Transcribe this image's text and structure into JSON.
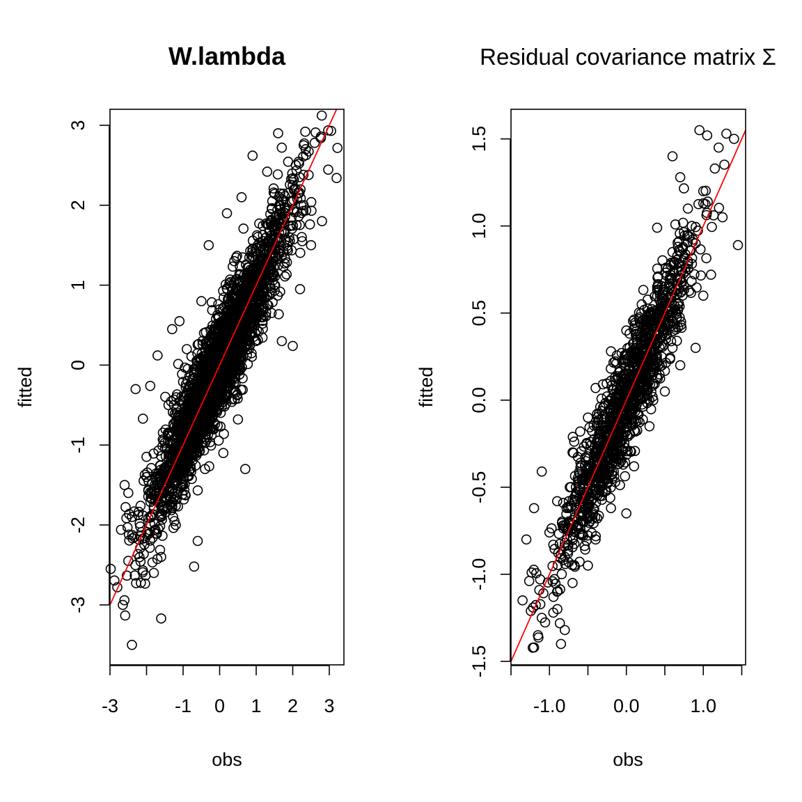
{
  "chart_data": [
    {
      "type": "scatter",
      "title": "W.lambda",
      "xlabel": "obs",
      "ylabel": "fitted",
      "xlim": [
        -3.0,
        3.4
      ],
      "ylim": [
        -3.75,
        3.2
      ],
      "xticks": [
        -3,
        -2,
        -1,
        0,
        1,
        2,
        3
      ],
      "xtick_labels": [
        "-3",
        "",
        "-1",
        "0",
        "1",
        "2",
        "3"
      ],
      "yticks": [
        -3,
        -2,
        -1,
        0,
        1,
        2,
        3
      ],
      "ytick_labels": [
        "-3",
        "-2",
        "-1",
        "0",
        "1",
        "2",
        "3"
      ],
      "reference_line": {
        "slope": 1.0,
        "intercept": 0.0,
        "color": "#ff0000"
      },
      "grid": false,
      "legend": "none",
      "points": [
        [
          -2.8,
          -2.78
        ],
        [
          -2.65,
          -3.0
        ],
        [
          -2.4,
          -3.5
        ],
        [
          -1.6,
          -3.17
        ],
        [
          -0.7,
          -2.52
        ],
        [
          -2.7,
          -2.06
        ],
        [
          -2.6,
          -1.5
        ],
        [
          -2.5,
          -1.6
        ],
        [
          -2.3,
          -0.3
        ],
        [
          -2.1,
          -0.67
        ],
        [
          -1.9,
          -0.26
        ],
        [
          -1.7,
          0.12
        ],
        [
          -1.3,
          0.45
        ],
        [
          -1.1,
          0.55
        ],
        [
          -0.3,
          1.5
        ],
        [
          0.2,
          1.9
        ],
        [
          0.6,
          2.1
        ],
        [
          0.9,
          2.62
        ],
        [
          1.3,
          2.42
        ],
        [
          1.6,
          2.9
        ],
        [
          1.7,
          2.72
        ],
        [
          2.0,
          2.25
        ],
        [
          2.3,
          2.75
        ],
        [
          2.6,
          2.78
        ],
        [
          3.2,
          2.34
        ],
        [
          2.8,
          1.8
        ],
        [
          2.5,
          1.5
        ],
        [
          2.2,
          0.95
        ],
        [
          2.0,
          0.24
        ],
        [
          1.7,
          0.3
        ],
        [
          0.7,
          -1.3
        ],
        [
          0.5,
          -0.68
        ],
        [
          0.1,
          -1.1
        ],
        [
          -0.6,
          -2.2
        ],
        [
          -1.2,
          -2.0
        ],
        [
          -1.6,
          -2.4
        ],
        [
          -1.8,
          -2.6
        ],
        [
          -2.0,
          -1.4
        ],
        [
          -2.4,
          -1.9
        ],
        [
          -2.5,
          -2.45
        ],
        [
          -0.2,
          -0.8
        ],
        [
          0.3,
          -0.3
        ],
        [
          0.8,
          0.2
        ],
        [
          1.2,
          0.6
        ],
        [
          1.4,
          1.8
        ],
        [
          1.0,
          1.2
        ],
        [
          0.4,
          1.3
        ],
        [
          -0.5,
          0.8
        ],
        [
          -0.9,
          0.2
        ],
        [
          -1.4,
          -0.5
        ],
        [
          -1.7,
          -1.5
        ],
        [
          -1.0,
          -1.5
        ],
        [
          -0.4,
          -1.3
        ],
        [
          0.0,
          0.0
        ],
        [
          0.6,
          0.5
        ],
        [
          1.1,
          0.9
        ],
        [
          1.5,
          1.0
        ],
        [
          1.9,
          1.6
        ],
        [
          2.3,
          2.0
        ],
        [
          -0.1,
          0.5
        ]
      ]
    },
    {
      "type": "scatter",
      "title": "Residual covariance matrix Σ",
      "xlabel": "obs",
      "ylabel": "fitted",
      "xlim": [
        -1.5,
        1.55
      ],
      "ylim": [
        -1.52,
        1.67
      ],
      "xticks": [
        -1.5,
        -1.0,
        -0.5,
        0.0,
        0.5,
        1.0,
        1.5
      ],
      "xtick_labels": [
        "",
        "-1.0",
        "",
        "0.0",
        "",
        "1.0",
        ""
      ],
      "yticks": [
        -1.5,
        -1.0,
        -0.5,
        0.0,
        0.5,
        1.0,
        1.5
      ],
      "ytick_labels": [
        "-1.5",
        "-1.0",
        "-0.5",
        "0.0",
        "0.5",
        "1.0",
        "1.5"
      ],
      "reference_line": {
        "slope": 1.0,
        "intercept": 0.0,
        "color": "#ff0000"
      },
      "grid": false,
      "legend": "none",
      "points": [
        [
          -1.35,
          -1.15
        ],
        [
          -1.2,
          -1.42
        ],
        [
          -1.15,
          -1.35
        ],
        [
          -1.1,
          -1.25
        ],
        [
          -0.95,
          -1.22
        ],
        [
          -0.85,
          -1.4
        ],
        [
          -0.8,
          -1.32
        ],
        [
          -1.3,
          -0.8
        ],
        [
          -1.2,
          -0.62
        ],
        [
          -1.1,
          -0.41
        ],
        [
          -0.9,
          -0.58
        ],
        [
          -0.6,
          -0.18
        ],
        [
          -0.4,
          0.07
        ],
        [
          -0.2,
          0.28
        ],
        [
          0.0,
          0.4
        ],
        [
          0.2,
          0.55
        ],
        [
          0.4,
          0.99
        ],
        [
          0.6,
          1.4
        ],
        [
          0.7,
          1.28
        ],
        [
          0.85,
          1.0
        ],
        [
          0.95,
          1.55
        ],
        [
          1.05,
          1.52
        ],
        [
          1.15,
          1.33
        ],
        [
          1.2,
          1.45
        ],
        [
          1.3,
          1.53
        ],
        [
          1.4,
          1.5
        ],
        [
          1.25,
          1.05
        ],
        [
          1.45,
          0.89
        ],
        [
          1.1,
          0.72
        ],
        [
          1.0,
          0.6
        ],
        [
          0.9,
          0.3
        ],
        [
          0.7,
          0.2
        ],
        [
          0.5,
          0.05
        ],
        [
          0.3,
          -0.15
        ],
        [
          0.1,
          -0.38
        ],
        [
          0.0,
          -0.65
        ],
        [
          -0.2,
          -0.62
        ],
        [
          -0.4,
          -0.8
        ],
        [
          -0.5,
          -0.95
        ],
        [
          -0.7,
          -1.05
        ],
        [
          -0.9,
          -1.1
        ],
        [
          -0.8,
          -0.9
        ],
        [
          -0.6,
          -0.6
        ],
        [
          -0.3,
          -0.3
        ],
        [
          -0.1,
          -0.1
        ],
        [
          0.1,
          0.1
        ],
        [
          0.3,
          0.3
        ],
        [
          0.5,
          0.5
        ],
        [
          0.7,
          0.7
        ],
        [
          0.9,
          0.9
        ],
        [
          0.8,
          1.1
        ],
        [
          0.6,
          0.85
        ],
        [
          0.4,
          0.65
        ],
        [
          0.2,
          0.25
        ],
        [
          -0.5,
          -0.1
        ],
        [
          -0.7,
          -0.3
        ],
        [
          -1.0,
          -0.76
        ],
        [
          0.6,
          0.3
        ],
        [
          0.35,
          0.0
        ],
        [
          1.0,
          1.2
        ]
      ]
    }
  ]
}
